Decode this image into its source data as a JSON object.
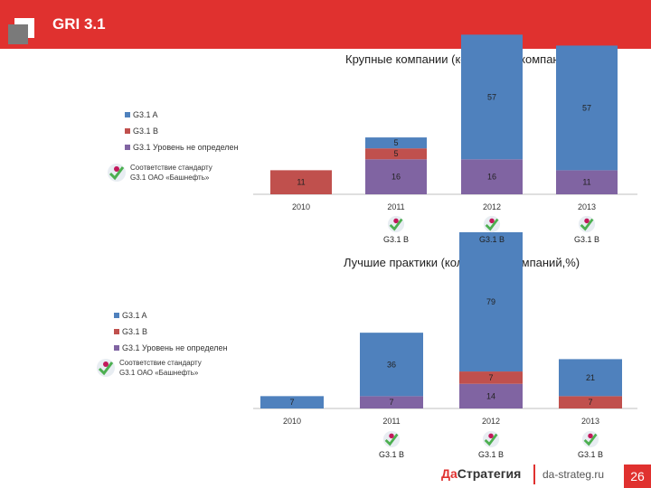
{
  "header": {
    "title": "GRI 3.1"
  },
  "legend": {
    "a": "G3.1 A",
    "b": "G3.1 B",
    "u": "G3.1 Уровень не определен",
    "std_line1": "Соответствие стандарту",
    "std_line2": "G3.1 ОАО «Башнефть»"
  },
  "colors": {
    "a": "#4f81bd",
    "b": "#c0504d",
    "u": "#8064a2",
    "accent": "#e0312f"
  },
  "chart_data": [
    {
      "type": "bar",
      "title": "Крупные компании (количество компаний,%)",
      "categories": [
        "2010",
        "2011",
        "2012",
        "2013"
      ],
      "series": [
        {
          "name": "G3.1 Уровень не определен",
          "values": [
            0,
            16,
            16,
            11
          ]
        },
        {
          "name": "G3.1 B",
          "values": [
            11,
            5,
            0,
            0
          ]
        },
        {
          "name": "G3.1 A",
          "values": [
            0,
            5,
            57,
            57
          ]
        }
      ],
      "stacked": true,
      "badges": [
        "",
        "G3.1 B",
        "G3.1 B",
        "G3.1 B"
      ]
    },
    {
      "type": "bar",
      "title": "Лучшие практики (количество компаний,%)",
      "categories": [
        "2010",
        "2011",
        "2012",
        "2013"
      ],
      "series": [
        {
          "name": "G3.1 Уровень не определен",
          "values": [
            0,
            7,
            14,
            0
          ]
        },
        {
          "name": "G3.1 B",
          "values": [
            0,
            0,
            7,
            7
          ]
        },
        {
          "name": "G3.1 A",
          "values": [
            7,
            36,
            79,
            21
          ]
        }
      ],
      "stacked": true,
      "badges": [
        "",
        "G3.1 B",
        "G3.1 B",
        "G3.1 B"
      ]
    }
  ],
  "footer": {
    "brand_da": "Да",
    "brand_rest": "Стратегия",
    "url": "da-strateg.ru",
    "page": "26"
  }
}
